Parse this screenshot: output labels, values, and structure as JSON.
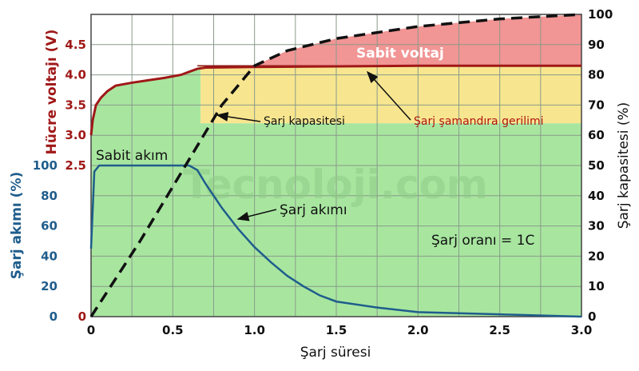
{
  "chart_data": {
    "type": "line",
    "xlabel": "Şarj süresi",
    "xlim": [
      0,
      3.0
    ],
    "x_ticks": [
      "0",
      "0.5",
      "1.0",
      "1.5",
      "2.0",
      "2.5",
      "3.0"
    ],
    "ylabel_voltage": "Hücre voltajı (V)",
    "ylim_voltage": [
      0,
      5
    ],
    "voltage_ticks": [
      "2.5",
      "3.0",
      "3.5",
      "4.0",
      "4.5"
    ],
    "ylabel_current": "Şarj akımı (%)",
    "current_ticks": [
      "0",
      "20",
      "40",
      "60",
      "80",
      "100"
    ],
    "ylabel_capacity": "Şarj kapasitesi (%)",
    "ylim_capacity": [
      0,
      100
    ],
    "capacity_ticks": [
      "0",
      "10",
      "20",
      "30",
      "40",
      "50",
      "60",
      "70",
      "80",
      "90",
      "100"
    ],
    "shared_zero_label": "0",
    "grid": true,
    "series": [
      {
        "name": "Hücre voltajı",
        "color": "#a01818",
        "x": [
          0,
          0.01,
          0.03,
          0.06,
          0.1,
          0.15,
          0.25,
          0.35,
          0.45,
          0.55,
          0.6,
          0.65,
          0.7,
          1.0,
          1.5,
          2.0,
          2.5,
          3.0
        ],
        "y": [
          3.0,
          3.25,
          3.5,
          3.62,
          3.73,
          3.82,
          3.87,
          3.91,
          3.95,
          4.0,
          4.05,
          4.1,
          4.12,
          4.13,
          4.14,
          4.15,
          4.15,
          4.15
        ]
      },
      {
        "name": "Şarj akımı",
        "color": "#1f5d8c",
        "x": [
          0,
          0.02,
          0.05,
          0.6,
          0.65,
          0.7,
          0.8,
          0.9,
          1.0,
          1.1,
          1.2,
          1.3,
          1.4,
          1.5,
          1.75,
          2.0,
          2.5,
          3.0
        ],
        "y": [
          45,
          96,
          100,
          100,
          97,
          88,
          72,
          58,
          46,
          36,
          27,
          20,
          14,
          10,
          6,
          3,
          1.5,
          0
        ]
      },
      {
        "name": "Şarj kapasitesi",
        "color": "#111111",
        "x": [
          0,
          0.3,
          0.6,
          0.8,
          1.0,
          1.2,
          1.5,
          2.0,
          2.5,
          3.0
        ],
        "y": [
          0,
          25,
          52,
          70,
          83,
          88,
          92,
          96,
          98.5,
          100
        ]
      }
    ],
    "regions": [
      {
        "name": "Sabit akım",
        "color": "#a8e6a0"
      },
      {
        "name": "Şarj şamandıra gerilimi",
        "color": "#f7e68f"
      },
      {
        "name": "Sabit voltaj",
        "color": "#f29595"
      }
    ],
    "annotations": {
      "constant_current": "Sabit akım",
      "constant_voltage": "Sabit voltaj",
      "float_voltage": "Şarj şamandıra gerilimi",
      "capacity": "Şarj kapasitesi",
      "current": "Şarj akımı",
      "rate": "Şarj oranı = 1C"
    },
    "watermark": "Tecnoloji.com"
  }
}
